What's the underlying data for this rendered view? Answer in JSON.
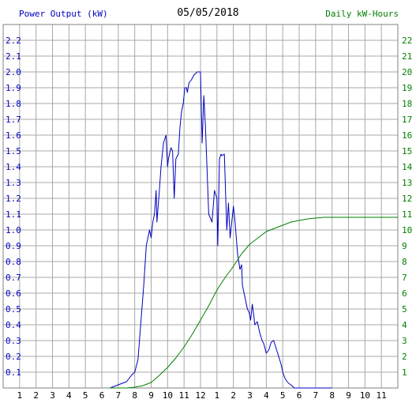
{
  "chart_data": {
    "type": "line",
    "title": "05/05/2018",
    "left_axis_label": "Power Output (kW)",
    "right_axis_label": "Daily kW-Hours",
    "x_tick_labels": [
      "1",
      "2",
      "3",
      "4",
      "5",
      "6",
      "7",
      "8",
      "9",
      "10",
      "11",
      "12",
      "1",
      "2",
      "3",
      "4",
      "5",
      "6",
      "7",
      "8",
      "9",
      "10",
      "11"
    ],
    "x_range_hours": [
      0,
      24
    ],
    "left_ylim": [
      0,
      2.3
    ],
    "left_yticks": [
      "0.1",
      "0.2",
      "0.3",
      "0.4",
      "0.5",
      "0.6",
      "0.7",
      "0.8",
      "0.9",
      "1.0",
      "1.1",
      "1.2",
      "1.3",
      "1.4",
      "1.5",
      "1.6",
      "1.7",
      "1.8",
      "1.9",
      "2.0",
      "2.1",
      "2.2"
    ],
    "right_ylim": [
      0,
      23
    ],
    "right_yticks": [
      "1",
      "2",
      "3",
      "4",
      "5",
      "6",
      "7",
      "8",
      "9",
      "10",
      "11",
      "12",
      "13",
      "14",
      "15",
      "16",
      "17",
      "18",
      "19",
      "20",
      "21",
      "22"
    ],
    "grid": true,
    "series": [
      {
        "color": "#0000c0",
        "axis": "left",
        "x": [
          6.5,
          7.0,
          7.5,
          7.8,
          8.0,
          8.2,
          8.4,
          8.55,
          8.7,
          8.9,
          9.0,
          9.1,
          9.2,
          9.3,
          9.35,
          9.5,
          9.6,
          9.75,
          9.9,
          10.0,
          10.05,
          10.2,
          10.3,
          10.4,
          10.5,
          10.65,
          10.75,
          10.85,
          10.95,
          11.05,
          11.15,
          11.2,
          11.3,
          11.45,
          11.6,
          11.8,
          12.0,
          12.1,
          12.2,
          12.3,
          12.5,
          12.7,
          12.85,
          13.0,
          13.05,
          13.15,
          13.25,
          13.3,
          13.45,
          13.6,
          13.7,
          13.8,
          13.9,
          14.0,
          14.1,
          14.25,
          14.4,
          14.5,
          14.55,
          14.65,
          14.75,
          14.85,
          14.95,
          15.05,
          15.15,
          15.25,
          15.3,
          15.45,
          15.6,
          15.75,
          15.85,
          16.0,
          16.15,
          16.3,
          16.45,
          16.6,
          16.75,
          16.9,
          17.0,
          17.1,
          17.2,
          17.35,
          17.5,
          17.6,
          17.7,
          17.8,
          17.95,
          18.1,
          18.2,
          18.3,
          18.45,
          18.6,
          18.8,
          19.0,
          19.25,
          19.5,
          19.75,
          20.0
        ],
        "y": [
          0.0,
          0.02,
          0.04,
          0.08,
          0.1,
          0.18,
          0.45,
          0.65,
          0.9,
          1.0,
          0.95,
          1.05,
          1.1,
          1.25,
          1.05,
          1.25,
          1.4,
          1.55,
          1.6,
          1.4,
          1.45,
          1.52,
          1.5,
          1.2,
          1.45,
          1.48,
          1.65,
          1.75,
          1.8,
          1.9,
          1.9,
          1.87,
          1.93,
          1.95,
          1.98,
          2.0,
          2.0,
          1.55,
          1.85,
          1.65,
          1.1,
          1.05,
          1.25,
          1.2,
          0.9,
          1.45,
          1.48,
          1.47,
          1.48,
          1.0,
          1.17,
          0.95,
          1.05,
          1.15,
          1.05,
          0.85,
          0.75,
          0.78,
          0.65,
          0.6,
          0.55,
          0.5,
          0.48,
          0.43,
          0.53,
          0.45,
          0.4,
          0.42,
          0.35,
          0.3,
          0.28,
          0.22,
          0.24,
          0.29,
          0.3,
          0.25,
          0.2,
          0.15,
          0.1,
          0.07,
          0.05,
          0.03,
          0.02,
          0.01,
          0.0,
          0.0,
          0.0,
          0.0,
          0.0,
          0.0,
          0.0,
          0.0,
          0.0,
          0.0,
          0.0,
          0.0,
          0.0,
          0.0
        ]
      },
      {
        "color": "#008000",
        "axis": "right",
        "x": [
          6.5,
          7.5,
          8.0,
          8.5,
          9.0,
          9.5,
          10.0,
          10.5,
          11.0,
          11.5,
          12.0,
          12.5,
          13.0,
          13.5,
          14.0,
          14.5,
          15.0,
          15.5,
          16.0,
          16.5,
          17.0,
          17.5,
          18.0,
          18.5,
          19.0,
          19.5,
          20.0,
          21.0,
          22.0,
          23.0,
          24.0
        ],
        "y": [
          0.0,
          0.0,
          0.05,
          0.15,
          0.35,
          0.8,
          1.3,
          1.9,
          2.6,
          3.4,
          4.3,
          5.2,
          6.2,
          7.0,
          7.7,
          8.5,
          9.1,
          9.5,
          9.9,
          10.1,
          10.3,
          10.5,
          10.6,
          10.7,
          10.75,
          10.8,
          10.8,
          10.8,
          10.8,
          10.8,
          10.8
        ]
      }
    ]
  }
}
